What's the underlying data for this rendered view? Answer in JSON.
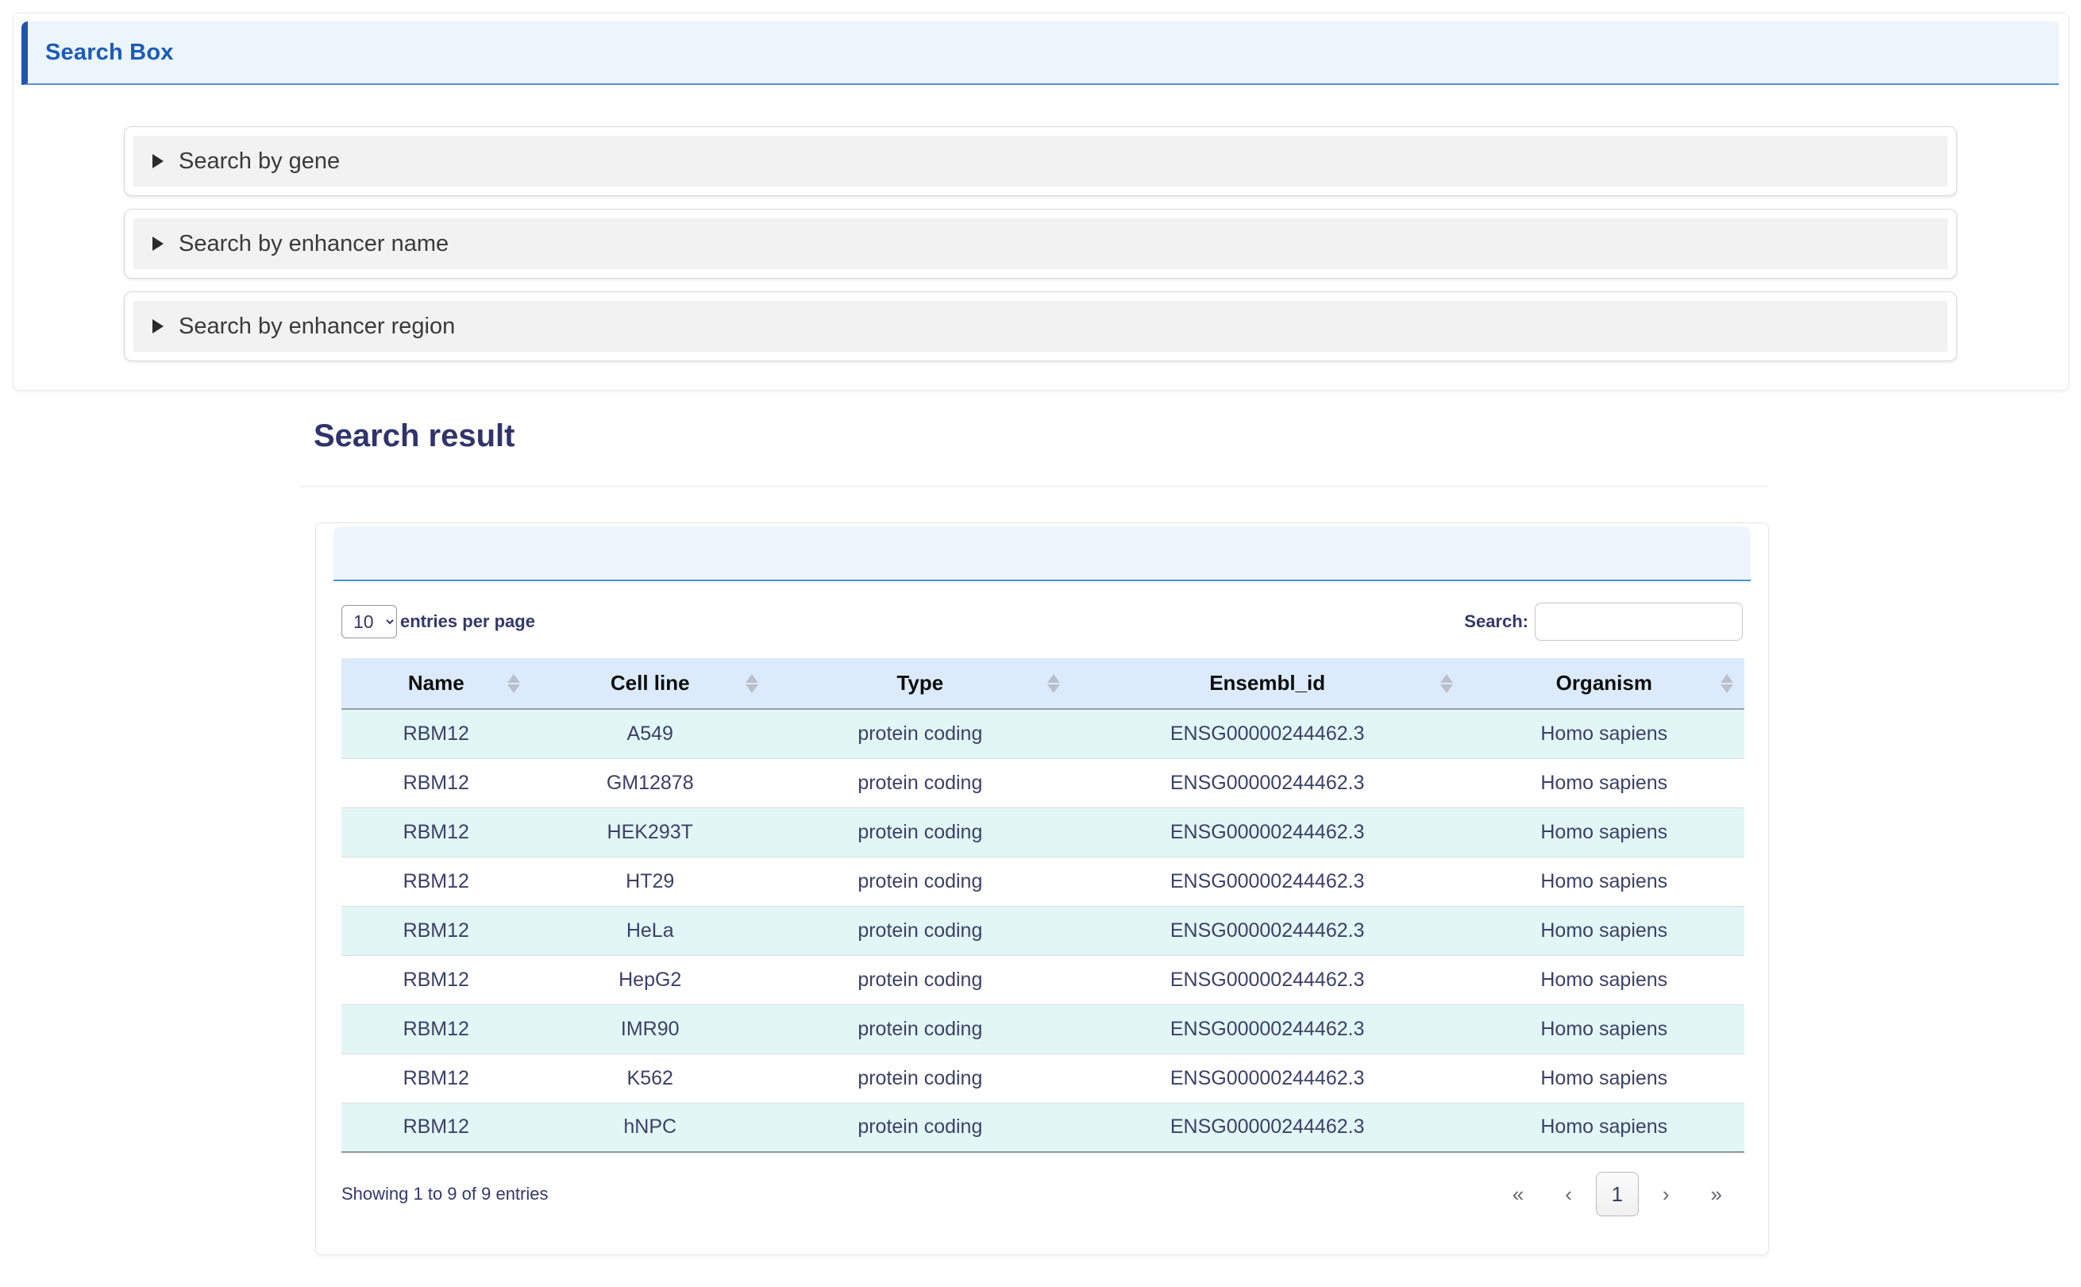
{
  "colors": {
    "accent_blue_text": "#1b5cb8",
    "accent_bar": "#2055ae",
    "header_bg": "#ecf4fc",
    "header_bottom_border": "#5b92d5",
    "panel_bar_bg": "#eef5fd",
    "panel_bar_border": "#4e8fd0",
    "thead_bg": "#dcebfb",
    "row_alt_bg": "#e2f6f6",
    "text_navy": "#3b4168"
  },
  "search_box": {
    "title": "Search Box",
    "sections": [
      {
        "label": "Search by gene"
      },
      {
        "label": "Search by enhancer name"
      },
      {
        "label": "Search by enhancer region"
      }
    ]
  },
  "results": {
    "title": "Search result",
    "entries_per_page": {
      "selected": "10",
      "label": "entries per page"
    },
    "search": {
      "label": "Search:",
      "value": "",
      "placeholder": ""
    },
    "table": {
      "columns": [
        "Name",
        "Cell line",
        "Type",
        "Ensembl_id",
        "Organism"
      ],
      "rows": [
        [
          "RBM12",
          "A549",
          "protein coding",
          "ENSG00000244462.3",
          "Homo sapiens"
        ],
        [
          "RBM12",
          "GM12878",
          "protein coding",
          "ENSG00000244462.3",
          "Homo sapiens"
        ],
        [
          "RBM12",
          "HEK293T",
          "protein coding",
          "ENSG00000244462.3",
          "Homo sapiens"
        ],
        [
          "RBM12",
          "HT29",
          "protein coding",
          "ENSG00000244462.3",
          "Homo sapiens"
        ],
        [
          "RBM12",
          "HeLa",
          "protein coding",
          "ENSG00000244462.3",
          "Homo sapiens"
        ],
        [
          "RBM12",
          "HepG2",
          "protein coding",
          "ENSG00000244462.3",
          "Homo sapiens"
        ],
        [
          "RBM12",
          "IMR90",
          "protein coding",
          "ENSG00000244462.3",
          "Homo sapiens"
        ],
        [
          "RBM12",
          "K562",
          "protein coding",
          "ENSG00000244462.3",
          "Homo sapiens"
        ],
        [
          "RBM12",
          "hNPC",
          "protein coding",
          "ENSG00000244462.3",
          "Homo sapiens"
        ]
      ]
    },
    "summary": "Showing 1 to 9 of 9 entries",
    "pagination": {
      "first": "«",
      "prev": "‹",
      "page": "1",
      "next": "›",
      "last": "»"
    }
  }
}
